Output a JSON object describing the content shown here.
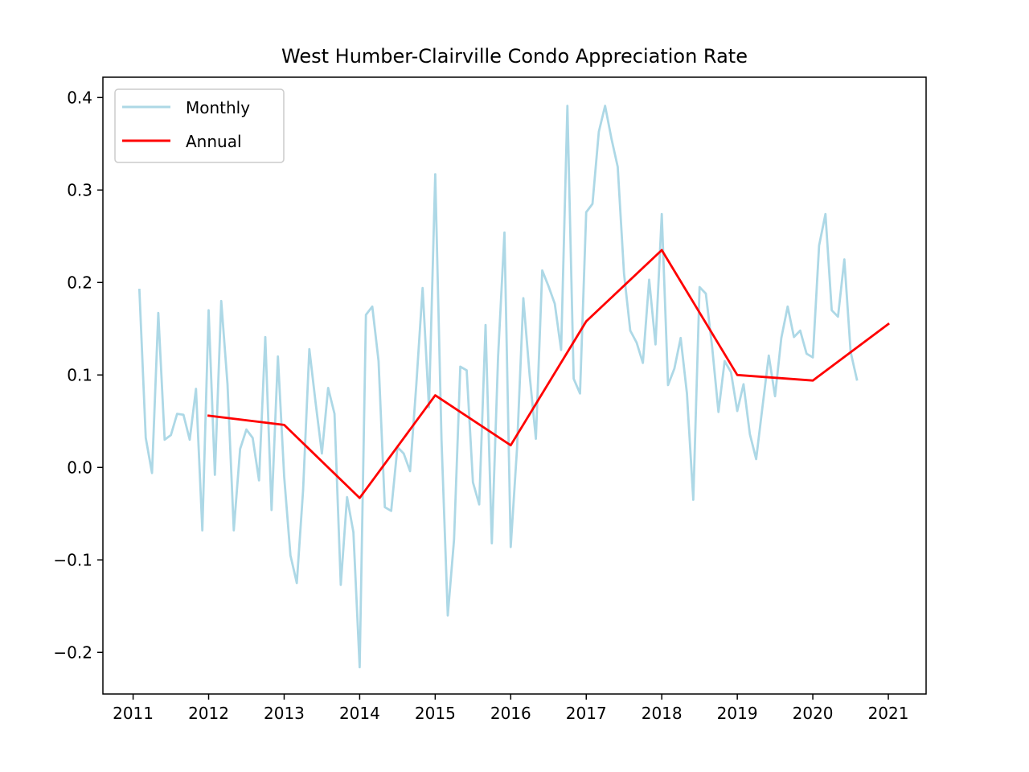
{
  "chart_data": {
    "type": "line",
    "title": "West Humber-Clairville Condo Appreciation Rate",
    "xlabel": "",
    "ylabel": "",
    "xlim": [
      2010.6,
      2021.5
    ],
    "ylim": [
      -0.245,
      0.422
    ],
    "x_ticks": [
      2011,
      2012,
      2013,
      2014,
      2015,
      2016,
      2017,
      2018,
      2019,
      2020,
      2021
    ],
    "x_tick_labels": [
      "2011",
      "2012",
      "2013",
      "2014",
      "2015",
      "2016",
      "2017",
      "2018",
      "2019",
      "2020",
      "2021"
    ],
    "y_ticks": [
      -0.2,
      -0.1,
      0.0,
      0.1,
      0.2,
      0.3,
      0.4
    ],
    "y_tick_labels": [
      "−0.2",
      "−0.1",
      "0.0",
      "0.1",
      "0.2",
      "0.3",
      "0.4"
    ],
    "grid": false,
    "legend": "top-left",
    "series": [
      {
        "name": "Monthly",
        "color": "#add8e6",
        "x": [
          2011.083,
          2011.167,
          2011.25,
          2011.333,
          2011.417,
          2011.5,
          2011.583,
          2011.667,
          2011.75,
          2011.833,
          2011.917,
          2012.0,
          2012.083,
          2012.167,
          2012.25,
          2012.333,
          2012.417,
          2012.5,
          2012.583,
          2012.667,
          2012.75,
          2012.833,
          2012.917,
          2013.0,
          2013.083,
          2013.167,
          2013.25,
          2013.333,
          2013.417,
          2013.5,
          2013.583,
          2013.667,
          2013.75,
          2013.833,
          2013.917,
          2014.0,
          2014.083,
          2014.167,
          2014.25,
          2014.333,
          2014.417,
          2014.5,
          2014.583,
          2014.667,
          2014.75,
          2014.833,
          2014.917,
          2015.0,
          2015.083,
          2015.167,
          2015.25,
          2015.333,
          2015.417,
          2015.5,
          2015.583,
          2015.667,
          2015.75,
          2015.833,
          2015.917,
          2016.0,
          2016.083,
          2016.167,
          2016.25,
          2016.333,
          2016.417,
          2016.5,
          2016.583,
          2016.667,
          2016.75,
          2016.833,
          2016.917,
          2017.0,
          2017.083,
          2017.167,
          2017.25,
          2017.333,
          2017.417,
          2017.5,
          2017.583,
          2017.667,
          2017.75,
          2017.833,
          2017.917,
          2018.0,
          2018.083,
          2018.167,
          2018.25,
          2018.333,
          2018.417,
          2018.5,
          2018.583,
          2018.667,
          2018.75,
          2018.833,
          2018.917,
          2019.0,
          2019.083,
          2019.167,
          2019.25,
          2019.333,
          2019.417,
          2019.5,
          2019.583,
          2019.667,
          2019.75,
          2019.833,
          2019.917,
          2020.0,
          2020.083,
          2020.167,
          2020.25,
          2020.333,
          2020.417,
          2020.5,
          2020.583
        ],
        "y": [
          0.192,
          0.032,
          -0.006,
          0.167,
          0.03,
          0.035,
          0.058,
          0.057,
          0.03,
          0.085,
          -0.068,
          0.17,
          -0.008,
          0.18,
          0.09,
          -0.068,
          0.02,
          0.041,
          0.032,
          -0.014,
          0.141,
          -0.046,
          0.12,
          -0.01,
          -0.095,
          -0.125,
          -0.025,
          0.128,
          0.07,
          0.015,
          0.086,
          0.058,
          -0.127,
          -0.032,
          -0.07,
          -0.216,
          0.165,
          0.174,
          0.115,
          -0.043,
          -0.047,
          0.022,
          0.015,
          -0.004,
          0.09,
          0.194,
          0.065,
          0.317,
          0.03,
          -0.16,
          -0.078,
          0.109,
          0.105,
          -0.016,
          -0.04,
          0.154,
          -0.082,
          0.12,
          0.254,
          -0.086,
          0.02,
          0.183,
          0.1,
          0.031,
          0.213,
          0.196,
          0.177,
          0.127,
          0.391,
          0.096,
          0.08,
          0.276,
          0.285,
          0.363,
          0.391,
          0.356,
          0.325,
          0.21,
          0.148,
          0.135,
          0.113,
          0.203,
          0.133,
          0.274,
          0.089,
          0.107,
          0.14,
          0.08,
          -0.035,
          0.195,
          0.188,
          0.13,
          0.06,
          0.115,
          0.103,
          0.061,
          0.09,
          0.036,
          0.009,
          0.065,
          0.121,
          0.077,
          0.14,
          0.174,
          0.141,
          0.148,
          0.123,
          0.119,
          0.24,
          0.274,
          0.17,
          0.163,
          0.225,
          0.125,
          0.095
        ]
      },
      {
        "name": "Annual",
        "color": "#ff0000",
        "x": [
          2012,
          2013,
          2014,
          2015,
          2016,
          2017,
          2018,
          2019,
          2020,
          2021
        ],
        "y": [
          0.056,
          0.046,
          -0.033,
          0.078,
          0.024,
          0.158,
          0.235,
          0.1,
          0.094,
          0.155
        ]
      }
    ]
  }
}
